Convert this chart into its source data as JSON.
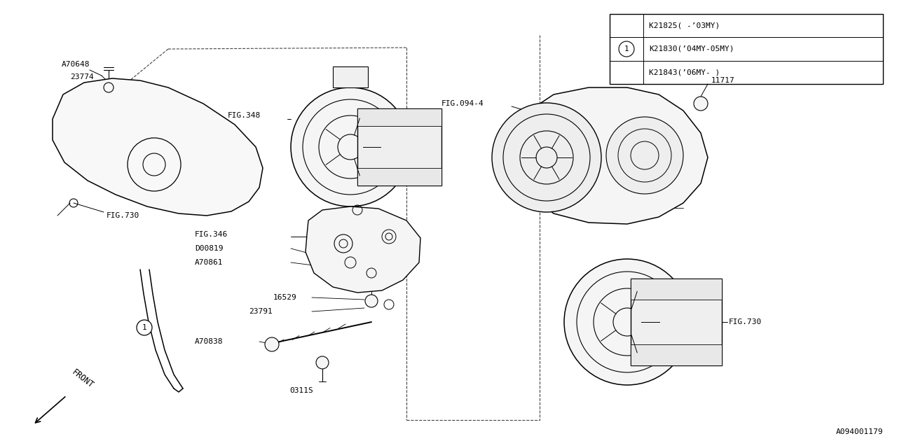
{
  "bg_color": "#ffffff",
  "line_color": "#000000",
  "fig_width": 12.8,
  "fig_height": 6.4,
  "legend_rows": [
    "K21825( -’03MY)",
    "K21830(’04MY-05MY)",
    "K21843(’06MY- )"
  ],
  "doc_number": "A094001179"
}
